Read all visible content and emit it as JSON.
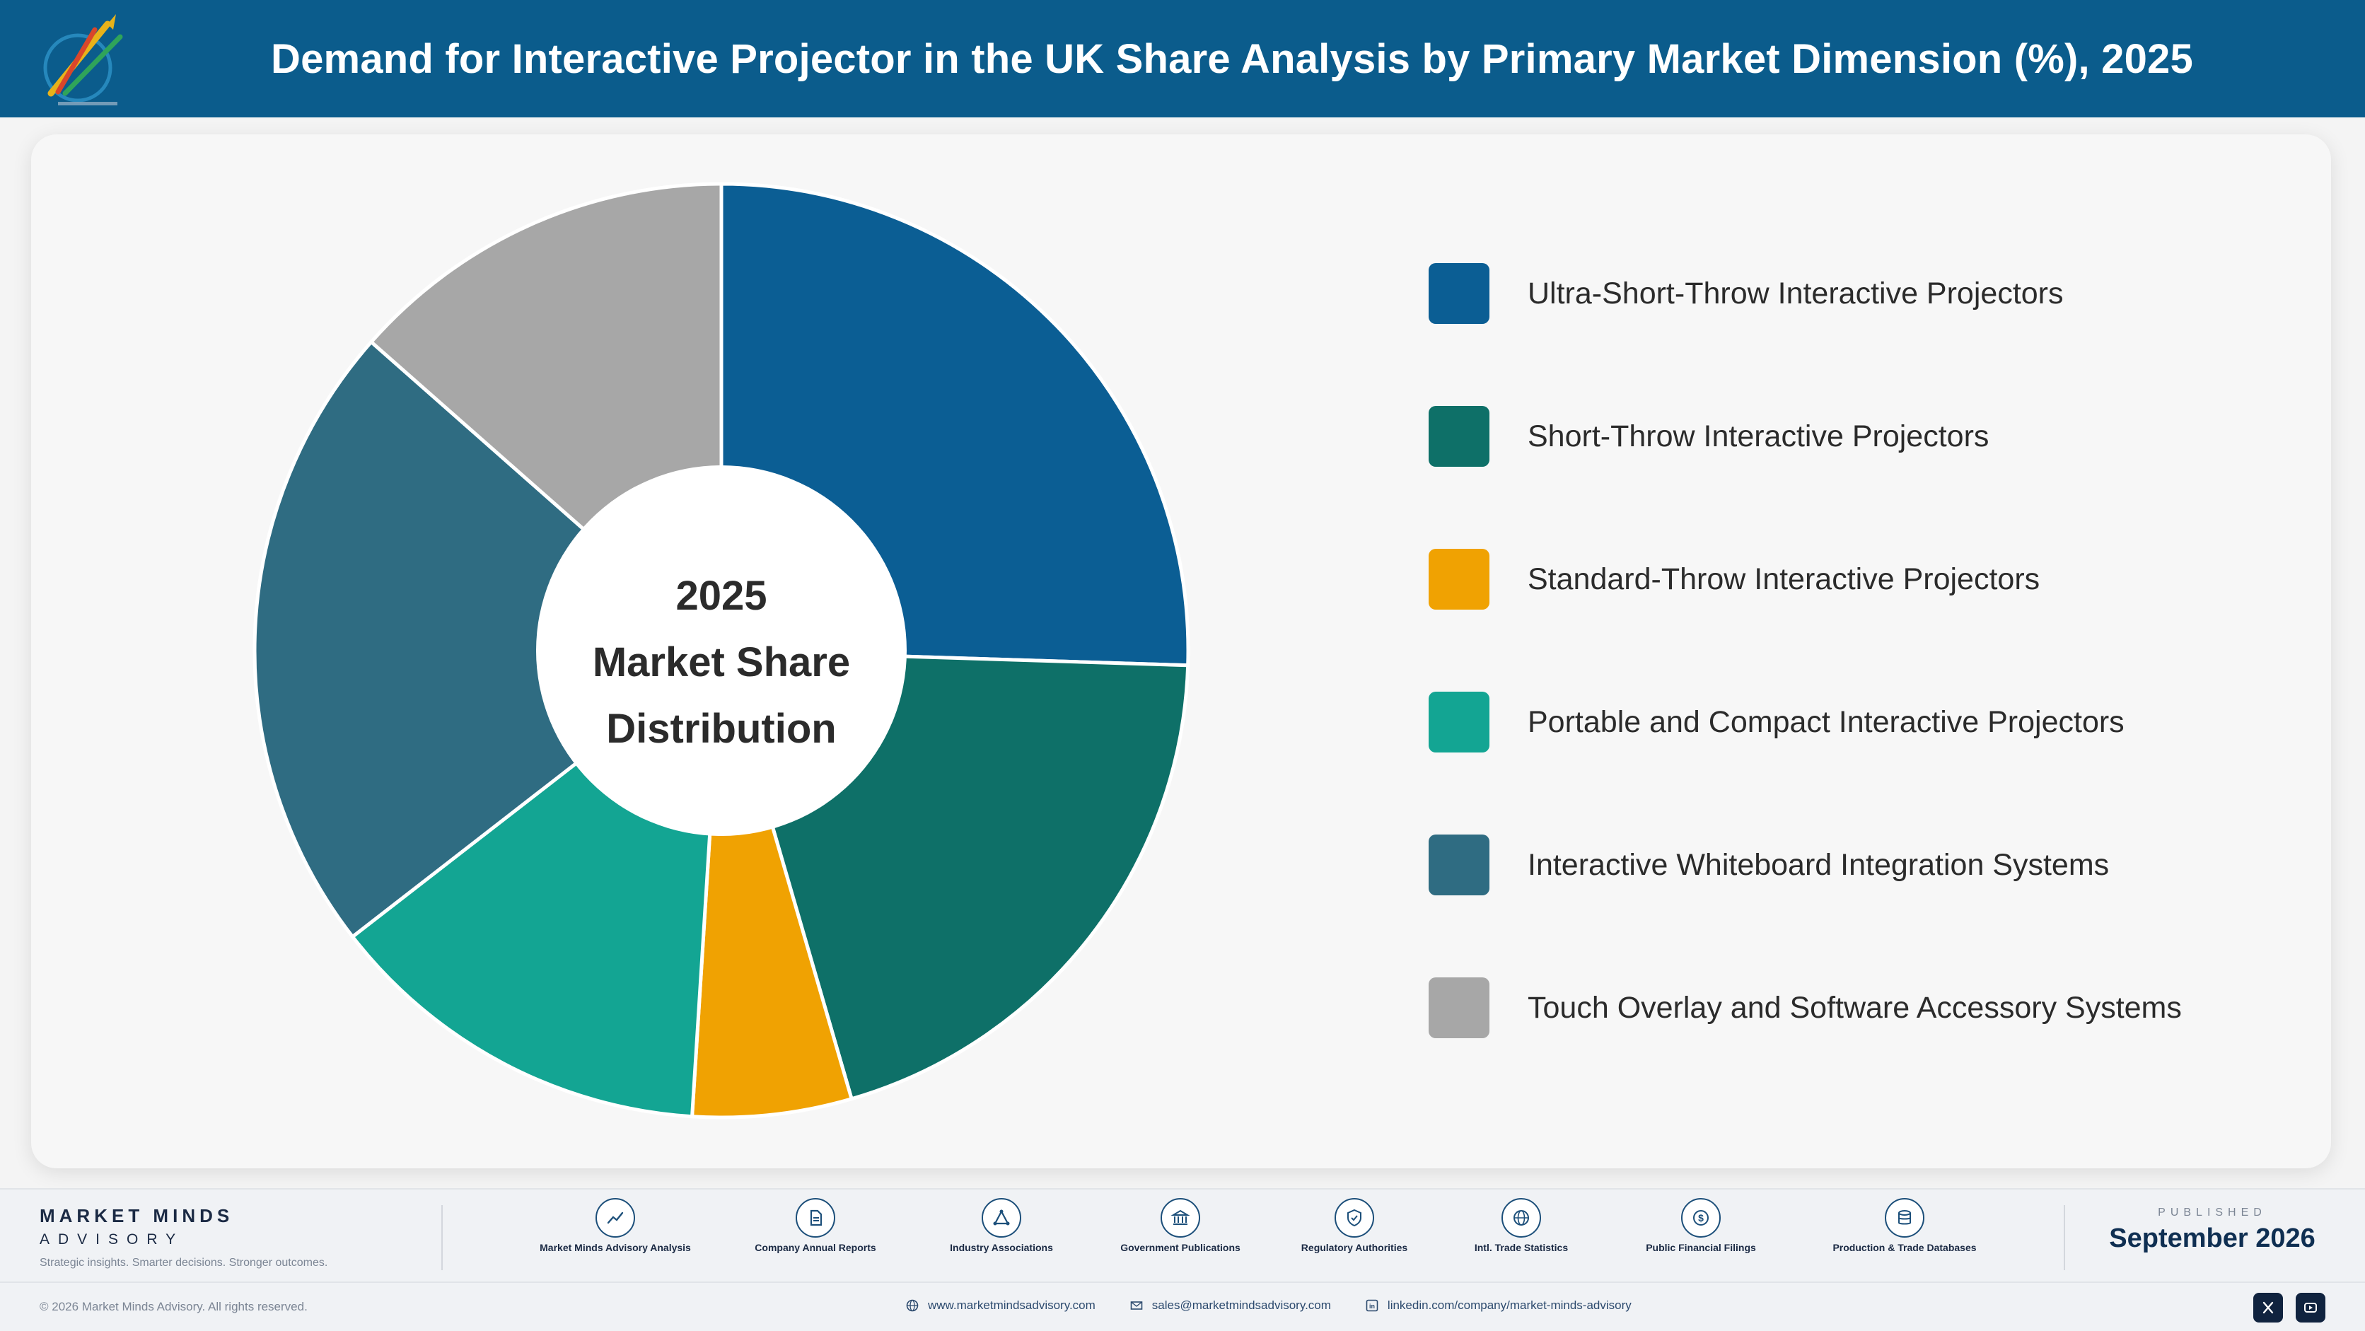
{
  "header": {
    "title": "Demand for Interactive Projector in the UK Share Analysis by Primary Market Dimension (%), 2025"
  },
  "chart_data": {
    "type": "pie",
    "title": "Demand for Interactive Projector in the UK Share Analysis by Primary Market Dimension (%), 2025",
    "center_label": [
      "2025",
      "Market Share",
      "Distribution"
    ],
    "categories": [
      "Ultra-Short-Throw Interactive Projectors",
      "Short-Throw Interactive Projectors",
      "Standard-Throw Interactive Projectors",
      "Portable and Compact Interactive Projectors",
      "Interactive Whiteboard Integration Systems",
      "Touch Overlay and Software Accessory Systems"
    ],
    "values": [
      25.5,
      20.0,
      5.5,
      13.5,
      22.0,
      13.5
    ],
    "colors": [
      "#0b5e94",
      "#0e7068",
      "#f0a202",
      "#13a593",
      "#2f6c82",
      "#a7a7a7"
    ],
    "legend_position": "right",
    "donut": true
  },
  "footer": {
    "brand_name": "MARKET MINDS",
    "brand_sub": "ADVISORY",
    "brand_tagline": "Strategic insights. Smarter decisions. Stronger outcomes.",
    "sources": [
      {
        "label": "Market Minds Advisory Analysis",
        "icon": "trend-chart-icon"
      },
      {
        "label": "Company Annual Reports",
        "icon": "document-icon"
      },
      {
        "label": "Industry Associations",
        "icon": "network-icon"
      },
      {
        "label": "Government Publications",
        "icon": "government-building-icon"
      },
      {
        "label": "Regulatory Authorities",
        "icon": "shield-check-icon"
      },
      {
        "label": "Intl. Trade Statistics",
        "icon": "globe-icon"
      },
      {
        "label": "Public Financial Filings",
        "icon": "dollar-coin-icon"
      },
      {
        "label": "Production & Trade Databases",
        "icon": "database-icon"
      }
    ],
    "published_label": "PUBLISHED",
    "published_date": "September 2026",
    "copyright": "© 2026 Market Minds Advisory. All rights reserved.",
    "website": "www.marketmindsadvisory.com",
    "email": "sales@marketmindsadvisory.com",
    "linkedin": "linkedin.com/company/market-minds-advisory"
  }
}
